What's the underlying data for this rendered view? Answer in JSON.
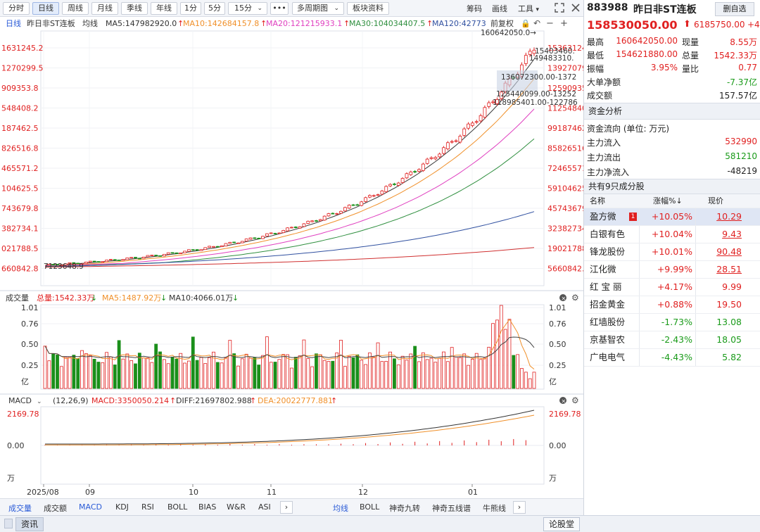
{
  "toolbar": {
    "tabs": [
      "分时",
      "日线",
      "周线",
      "月线",
      "季线",
      "年线",
      "1分",
      "5分",
      "15分",
      "•••",
      "多周期图",
      "板块资料"
    ],
    "active": "日线",
    "right_items": [
      "筹码",
      "画线",
      "工具"
    ]
  },
  "legend": {
    "label1": "日线",
    "label2": "昨日非ST连板",
    "label3": "均线",
    "ma5": "MA5:147982920.0",
    "ma10": "MA10:142684157.8",
    "ma20": "MA20:121215933.1",
    "ma30": "MA30:104034407.5",
    "ma120": "MA120:42773",
    "fq": "前复权"
  },
  "colors": {
    "up": "#e02020",
    "down": "#1a8f1a",
    "ma5": "#3a3a3a",
    "ma10": "#f0902a",
    "ma20": "#e040c0",
    "ma30": "#2f8f3f",
    "ma120": "#3050a0",
    "ma250": "#d03030",
    "accent": "#2a5bd7"
  },
  "main_chart": {
    "y_labels": [
      "1631245.2",
      "1270299.5",
      "909353.8",
      "548408.2",
      "187462.5",
      "826516.8",
      "465571.2",
      "104625.5",
      "743679.8",
      "382734.1",
      "021788.5",
      "660842.8"
    ],
    "y_labels_right": [
      "15363124",
      "13927079",
      "12590935",
      "11254840",
      "99187462",
      "85826516",
      "72465571",
      "59104625",
      "45743679",
      "32382734",
      "19021788",
      "5660842."
    ],
    "annotations": {
      "peak": "160642050.0→",
      "a1": "15403460.",
      "a2": "149483310.",
      "a3": "136072300.00-1372",
      "a4": "125440099.00-13252",
      "a5": "118985401.00-122786",
      "low": "7123648.9"
    }
  },
  "volume_panel": {
    "title": "成交量",
    "total": "总量:1542.33万",
    "ma5": "MA5:1487.92万",
    "ma10": "MA10:4066.01万",
    "y_labels": [
      "1.01",
      "0.76",
      "0.50",
      "0.25",
      "亿"
    ]
  },
  "macd_panel": {
    "title": "MACD",
    "params": "(12,26,9)",
    "macd": "MACD:3350050.214",
    "diff": "DIFF:21697802.988",
    "dea": "DEA:20022777.881",
    "y_labels": [
      "2169.78",
      "0.00",
      "万"
    ]
  },
  "x_axis": [
    "2025/08",
    "09",
    "10",
    "11",
    "12",
    "01"
  ],
  "bottom_tabs_left": [
    "成交量",
    "成交额",
    "MACD",
    "KDJ",
    "RSI",
    "BOLL",
    "BIAS",
    "W&R",
    "ASI"
  ],
  "bottom_tabs_right": [
    "均线",
    "BOLL",
    "神奇九转",
    "神奇五线谱",
    "牛熊线"
  ],
  "statusbar": {
    "left": "资讯",
    "right": "论股堂"
  },
  "quote": {
    "code": "883988",
    "name": "昨日非ST连板",
    "watch_button": "删自选",
    "price": "158530050.00",
    "change": "6185750.00",
    "change_pct": "+4",
    "stats": [
      {
        "label": "最高",
        "value": "160642050.00",
        "label2": "现量",
        "value2": "8.55万"
      },
      {
        "label": "最低",
        "value": "154621880.00",
        "label2": "总量",
        "value2": "1542.33万"
      },
      {
        "label": "振幅",
        "value": "3.95%",
        "label2": "量比",
        "value2": "0.77"
      }
    ],
    "big_net_label": "大单净额",
    "big_net_value": "-7.37亿",
    "turnover_label": "成交额",
    "turnover_value": "157.57亿"
  },
  "funds": {
    "section": "资金分析",
    "unit": "资金流向 (单位: 万元)",
    "rows": [
      {
        "label": "主力流入",
        "value": "532990"
      },
      {
        "label": "主力流出",
        "value": "581210"
      },
      {
        "label": "主力净流入",
        "value": "-48219"
      }
    ]
  },
  "constituents": {
    "title": "共有9只成分股",
    "headers": [
      "名称",
      "涨幅%↓",
      "现价"
    ],
    "rows": [
      {
        "name": "盈方微",
        "badge": "1",
        "pct": "+10.05%",
        "price": "10.29"
      },
      {
        "name": "白银有色",
        "pct": "+10.04%",
        "price": "9.43"
      },
      {
        "name": "锋龙股份",
        "pct": "+10.01%",
        "price": "90.48"
      },
      {
        "name": "江化微",
        "pct": "+9.99%",
        "price": "28.51"
      },
      {
        "name": "红 宝 丽",
        "pct": "+4.17%",
        "price": "9.99"
      },
      {
        "name": "招金黄金",
        "pct": "+0.88%",
        "price": "19.50"
      },
      {
        "name": "红墙股份",
        "pct": "-1.73%",
        "price": "13.08"
      },
      {
        "name": "京基智农",
        "pct": "-2.43%",
        "price": "18.05"
      },
      {
        "name": "广电电气",
        "pct": "-4.43%",
        "price": "5.82"
      }
    ]
  }
}
